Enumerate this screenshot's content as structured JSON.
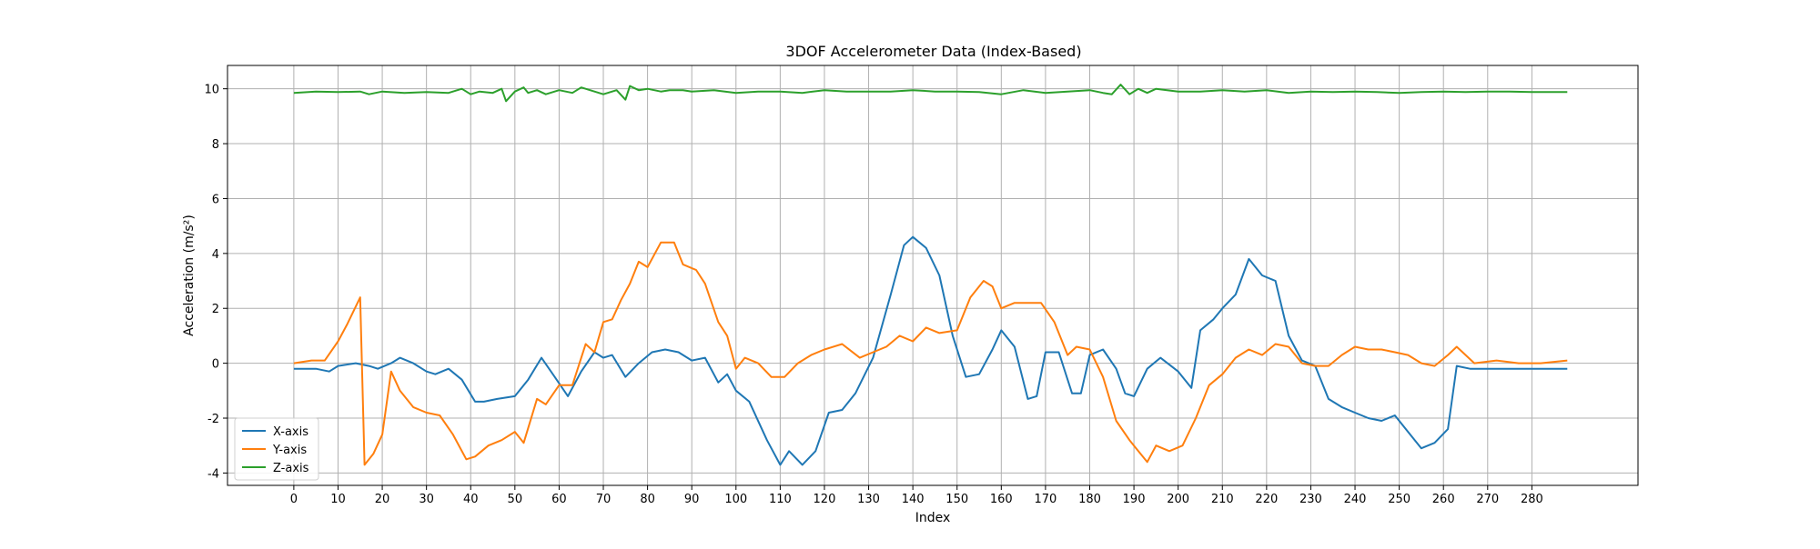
{
  "chart_data": {
    "type": "line",
    "title": "3DOF Accelerometer Data (Index-Based)",
    "xlabel": "Index",
    "ylabel": "Acceleration (m/s²)",
    "xlim": [
      -15,
      304
    ],
    "ylim": [
      -4.45,
      10.85
    ],
    "xticks": [
      0,
      10,
      20,
      30,
      40,
      50,
      60,
      70,
      80,
      90,
      100,
      110,
      120,
      130,
      140,
      150,
      160,
      170,
      180,
      190,
      200,
      210,
      220,
      230,
      240,
      250,
      260,
      270,
      280
    ],
    "yticks": [
      -4,
      -2,
      0,
      2,
      4,
      6,
      8,
      10
    ],
    "grid": true,
    "legend_position": "lower-left",
    "series": [
      {
        "name": "X-axis",
        "color": "#1f77b4",
        "x": [
          0,
          5,
          8,
          10,
          14,
          17,
          19,
          22,
          24,
          27,
          30,
          32,
          35,
          38,
          41,
          43,
          46,
          50,
          53,
          56,
          59,
          62,
          65,
          68,
          70,
          72,
          75,
          78,
          81,
          84,
          87,
          90,
          93,
          96,
          98,
          100,
          103,
          107,
          110,
          112,
          115,
          118,
          121,
          124,
          127,
          131,
          135,
          138,
          140,
          143,
          146,
          149,
          152,
          155,
          158,
          160,
          163,
          166,
          168,
          170,
          173,
          176,
          178,
          180,
          183,
          186,
          188,
          190,
          193,
          196,
          200,
          203,
          205,
          208,
          210,
          213,
          216,
          219,
          222,
          225,
          228,
          231,
          234,
          237,
          240,
          243,
          246,
          249,
          252,
          255,
          258,
          261,
          263,
          266,
          270,
          275,
          280,
          288
        ],
        "y": [
          -0.2,
          -0.2,
          -0.3,
          -0.1,
          0.0,
          -0.1,
          -0.2,
          0.0,
          0.2,
          0.0,
          -0.3,
          -0.4,
          -0.2,
          -0.6,
          -1.4,
          -1.4,
          -1.3,
          -1.2,
          -0.6,
          0.2,
          -0.5,
          -1.2,
          -0.3,
          0.4,
          0.2,
          0.3,
          -0.5,
          0.0,
          0.4,
          0.5,
          0.4,
          0.1,
          0.2,
          -0.7,
          -0.4,
          -1.0,
          -1.4,
          -2.8,
          -3.7,
          -3.2,
          -3.7,
          -3.2,
          -1.8,
          -1.7,
          -1.1,
          0.2,
          2.5,
          4.3,
          4.6,
          4.2,
          3.2,
          1.0,
          -0.5,
          -0.4,
          0.5,
          1.2,
          0.6,
          -1.3,
          -1.2,
          0.4,
          0.4,
          -1.1,
          -1.1,
          0.3,
          0.5,
          -0.2,
          -1.1,
          -1.2,
          -0.2,
          0.2,
          -0.3,
          -0.9,
          1.2,
          1.6,
          2.0,
          2.5,
          3.8,
          3.2,
          3.0,
          1.0,
          0.1,
          -0.1,
          -1.3,
          -1.6,
          -1.8,
          -2.0,
          -2.1,
          -1.9,
          -2.5,
          -3.1,
          -2.9,
          -2.4,
          -0.1,
          -0.2,
          -0.2,
          -0.2,
          -0.2,
          -0.2
        ]
      },
      {
        "name": "Y-axis",
        "color": "#ff7f0e",
        "x": [
          0,
          4,
          7,
          10,
          12,
          15,
          16,
          18,
          20,
          22,
          24,
          27,
          30,
          33,
          36,
          39,
          41,
          44,
          47,
          50,
          52,
          55,
          57,
          60,
          63,
          66,
          68,
          70,
          72,
          74,
          76,
          78,
          80,
          83,
          86,
          88,
          91,
          93,
          96,
          98,
          100,
          102,
          105,
          108,
          111,
          114,
          117,
          120,
          124,
          128,
          131,
          134,
          137,
          140,
          143,
          146,
          150,
          153,
          156,
          158,
          160,
          163,
          166,
          169,
          172,
          175,
          177,
          180,
          183,
          186,
          189,
          191,
          193,
          195,
          198,
          201,
          204,
          207,
          210,
          213,
          216,
          219,
          222,
          225,
          228,
          231,
          234,
          237,
          240,
          243,
          246,
          249,
          252,
          255,
          258,
          261,
          263,
          267,
          272,
          277,
          282,
          288
        ],
        "y": [
          0.0,
          0.1,
          0.1,
          0.8,
          1.4,
          2.4,
          -3.7,
          -3.3,
          -2.6,
          -0.3,
          -1.0,
          -1.6,
          -1.8,
          -1.9,
          -2.6,
          -3.5,
          -3.4,
          -3.0,
          -2.8,
          -2.5,
          -2.9,
          -1.3,
          -1.5,
          -0.8,
          -0.8,
          0.7,
          0.4,
          1.5,
          1.6,
          2.3,
          2.9,
          3.7,
          3.5,
          4.4,
          4.4,
          3.6,
          3.4,
          2.9,
          1.5,
          1.0,
          -0.2,
          0.2,
          0.0,
          -0.5,
          -0.5,
          0.0,
          0.3,
          0.5,
          0.7,
          0.2,
          0.4,
          0.6,
          1.0,
          0.8,
          1.3,
          1.1,
          1.2,
          2.4,
          3.0,
          2.8,
          2.0,
          2.2,
          2.2,
          2.2,
          1.5,
          0.3,
          0.6,
          0.5,
          -0.5,
          -2.1,
          -2.8,
          -3.2,
          -3.6,
          -3.0,
          -3.2,
          -3.0,
          -2.0,
          -0.8,
          -0.4,
          0.2,
          0.5,
          0.3,
          0.7,
          0.6,
          0.0,
          -0.1,
          -0.1,
          0.3,
          0.6,
          0.5,
          0.5,
          0.4,
          0.3,
          0.0,
          -0.1,
          0.3,
          0.6,
          0.0,
          0.1,
          0.0,
          0.0,
          0.1
        ]
      },
      {
        "name": "Z-axis",
        "color": "#2ca02c",
        "x": [
          0,
          5,
          10,
          15,
          17,
          20,
          25,
          30,
          35,
          38,
          40,
          42,
          45,
          47,
          48,
          50,
          52,
          53,
          55,
          57,
          60,
          63,
          65,
          67,
          70,
          73,
          75,
          76,
          78,
          80,
          83,
          85,
          88,
          90,
          95,
          100,
          105,
          110,
          115,
          120,
          125,
          130,
          135,
          140,
          145,
          150,
          155,
          160,
          165,
          170,
          175,
          180,
          183,
          185,
          187,
          189,
          191,
          193,
          195,
          200,
          205,
          210,
          215,
          220,
          225,
          230,
          235,
          240,
          245,
          250,
          255,
          260,
          265,
          270,
          275,
          280,
          288
        ],
        "y": [
          9.85,
          9.9,
          9.88,
          9.9,
          9.8,
          9.9,
          9.85,
          9.88,
          9.85,
          10.0,
          9.8,
          9.9,
          9.85,
          10.0,
          9.55,
          9.9,
          10.05,
          9.85,
          9.95,
          9.8,
          9.95,
          9.85,
          10.05,
          9.95,
          9.8,
          9.95,
          9.6,
          10.1,
          9.95,
          10.0,
          9.9,
          9.95,
          9.95,
          9.9,
          9.95,
          9.85,
          9.9,
          9.9,
          9.85,
          9.95,
          9.9,
          9.9,
          9.9,
          9.95,
          9.9,
          9.9,
          9.88,
          9.8,
          9.95,
          9.85,
          9.9,
          9.95,
          9.85,
          9.8,
          10.15,
          9.8,
          10.0,
          9.85,
          10.0,
          9.9,
          9.9,
          9.95,
          9.9,
          9.95,
          9.85,
          9.9,
          9.88,
          9.9,
          9.88,
          9.85,
          9.88,
          9.9,
          9.88,
          9.9,
          9.9,
          9.88,
          9.88
        ]
      }
    ]
  }
}
